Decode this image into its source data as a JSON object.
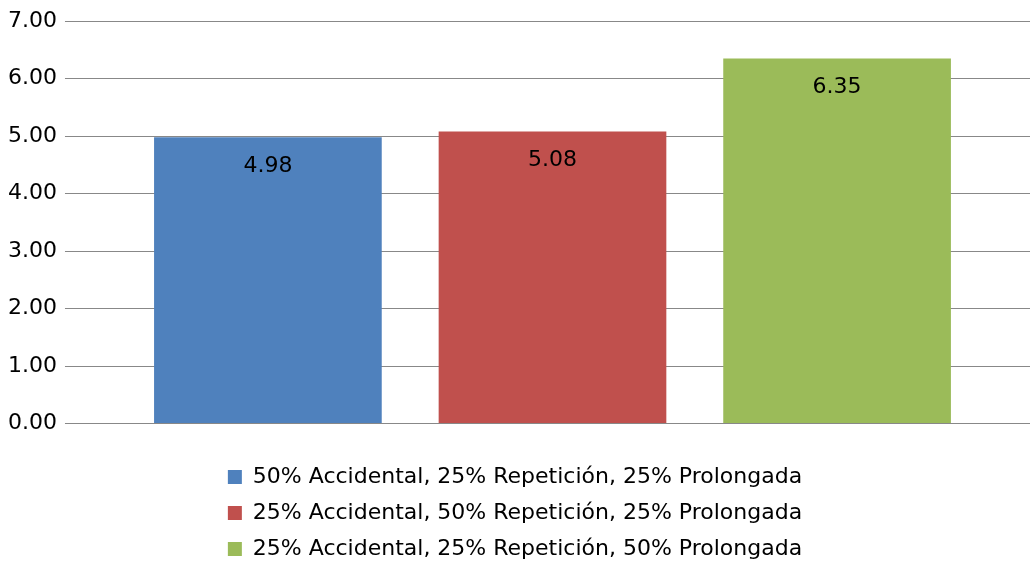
{
  "chart_data": {
    "type": "bar",
    "categories": [
      null
    ],
    "series": [
      {
        "name": "50% Accidental, 25% Repetición, 25% Prolongada",
        "color": "#4f81bd",
        "values": [
          4.98
        ]
      },
      {
        "name": "25% Accidental, 50% Repetición, 25% Prolongada",
        "color": "#c0504d",
        "values": [
          5.08
        ]
      },
      {
        "name": "25% Accidental, 25% Repetición, 50% Prolongada",
        "color": "#9bbb59",
        "values": [
          6.35
        ]
      }
    ],
    "ylim": [
      0,
      7
    ],
    "yticks": [
      {
        "value": 0,
        "label": "0.00"
      },
      {
        "value": 1,
        "label": "1.00"
      },
      {
        "value": 2,
        "label": "2.00"
      },
      {
        "value": 3,
        "label": "3.00"
      },
      {
        "value": 4,
        "label": "4.00"
      },
      {
        "value": 5,
        "label": "5.00"
      },
      {
        "value": 6,
        "label": "6.00"
      },
      {
        "value": 7,
        "label": "7.00"
      }
    ],
    "grid": "y",
    "legend": "bottom",
    "data_labels": true
  }
}
